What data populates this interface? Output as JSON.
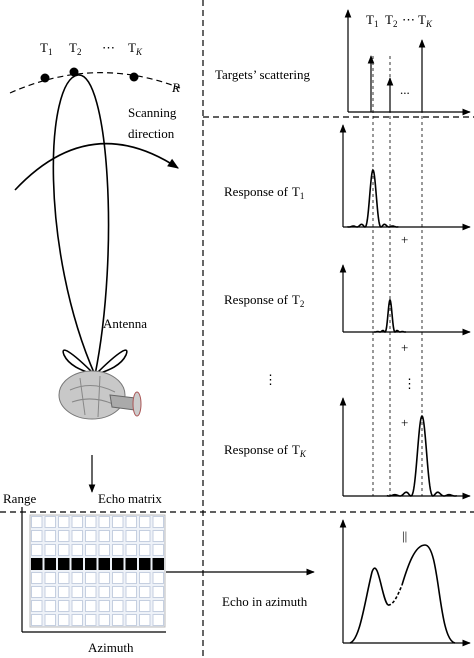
{
  "scene": {
    "targets": [
      {
        "letter": "T",
        "sub": "1"
      },
      {
        "letter": "T",
        "sub": "2"
      },
      {
        "letter": "T",
        "sub": "K"
      }
    ],
    "ellipsis": "⋯",
    "orbit_label": "R",
    "scan_label": [
      "Scanning",
      "direction"
    ],
    "antenna_label": "Antenna"
  },
  "echo_matrix": {
    "label": "Echo matrix",
    "y_axis": "Range",
    "x_axis": "Azimuth"
  },
  "panels": [
    {
      "label": "Targets’ scattering",
      "targets": [
        {
          "letter": "T",
          "sub": "1"
        },
        {
          "letter": "T",
          "sub": "2"
        },
        {
          "letter": "T",
          "sub": "K"
        }
      ],
      "ellipsis": "⋯",
      "dots": "..."
    },
    {
      "prefix": "Response of",
      "letter": "T",
      "sub": "1"
    },
    {
      "prefix": "Response of",
      "letter": "T",
      "sub": "2"
    },
    {
      "prefix": "Response of",
      "letter": "T",
      "sub": "K"
    },
    {
      "label": "Echo in azimuth"
    }
  ],
  "symbols": {
    "plus": [
      "+",
      "+",
      "+"
    ],
    "vdots": [
      "⋮",
      "⋮"
    ],
    "equals": "||"
  }
}
